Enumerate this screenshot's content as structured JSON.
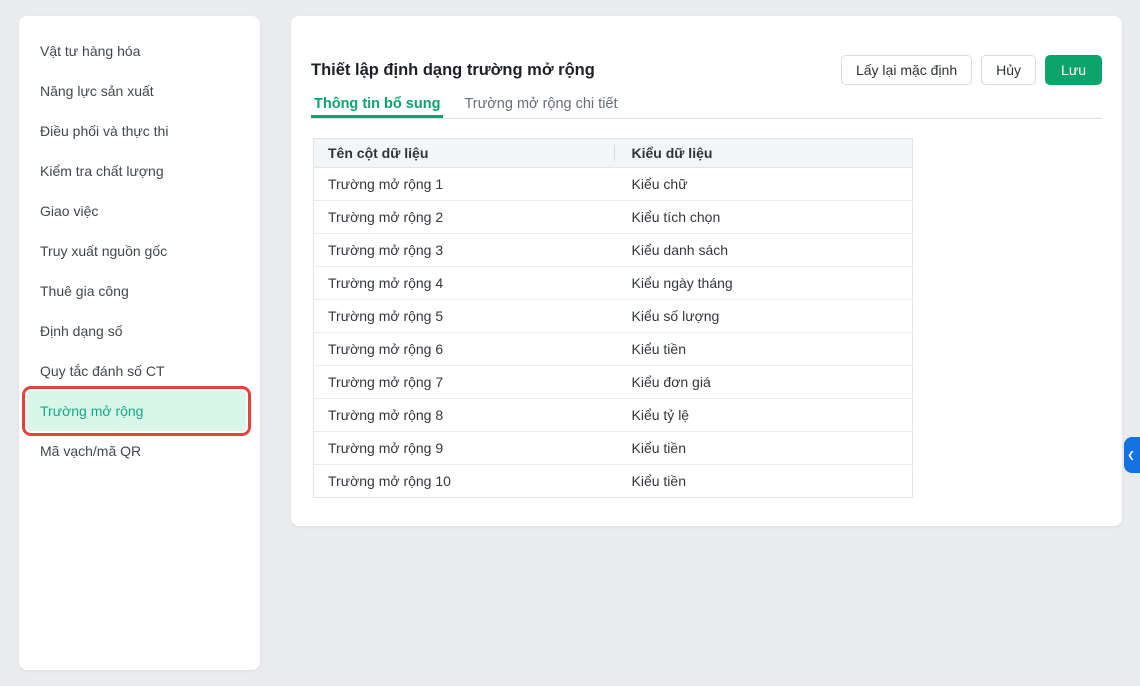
{
  "app": {
    "background": "#e9ebee"
  },
  "sidebar": {
    "items": [
      {
        "label": "Vật tư hàng hóa",
        "active": false
      },
      {
        "label": "Năng lực sản xuất",
        "active": false
      },
      {
        "label": "Điều phối và thực thi",
        "active": false
      },
      {
        "label": "Kiểm tra chất lượng",
        "active": false
      },
      {
        "label": "Giao việc",
        "active": false
      },
      {
        "label": "Truy xuất nguồn gốc",
        "active": false
      },
      {
        "label": "Thuê gia công",
        "active": false
      },
      {
        "label": "Định dạng số",
        "active": false
      },
      {
        "label": "Quy tắc đánh số CT",
        "active": false
      },
      {
        "label": "Trường mở rộng",
        "active": true,
        "highlighted": true
      },
      {
        "label": "Mã vạch/mã QR",
        "active": false
      }
    ],
    "colors": {
      "active_bg": "#d8f6e9",
      "active_text": "#10ab84",
      "highlight_border": "#e2443c"
    }
  },
  "panel": {
    "title": "Thiết lập định dạng trường mở rộng",
    "actions": {
      "reset_label": "Lấy lại mặc định",
      "cancel_label": "Hủy",
      "save_label": "Lưu"
    },
    "tabs": [
      {
        "label": "Thông tin bổ sung",
        "active": true
      },
      {
        "label": "Trường mở rộng chi tiết",
        "active": false
      }
    ],
    "accent_green": "#0da46c"
  },
  "table": {
    "columns": [
      "Tên cột dữ liệu",
      "Kiểu dữ liệu"
    ],
    "rows": [
      [
        "Trường mở rộng 1",
        "Kiểu chữ"
      ],
      [
        "Trường mở rộng 2",
        "Kiểu tích chọn"
      ],
      [
        "Trường mở rộng 3",
        "Kiểu danh sách"
      ],
      [
        "Trường mở rộng 4",
        "Kiểu ngày tháng"
      ],
      [
        "Trường mở rộng 5",
        "Kiểu số lượng"
      ],
      [
        "Trường mở rộng 6",
        "Kiểu tiền"
      ],
      [
        "Trường mở rộng 7",
        "Kiểu đơn giá"
      ],
      [
        "Trường mở rộng 8",
        "Kiểu tỷ lệ"
      ],
      [
        "Trường mở rộng 9",
        "Kiểu tiền"
      ],
      [
        "Trường mở rộng 10",
        "Kiểu tiền"
      ]
    ]
  },
  "side_toggle": {
    "icon": "chevron-left",
    "glyph": "❮",
    "color": "#1372e0"
  }
}
